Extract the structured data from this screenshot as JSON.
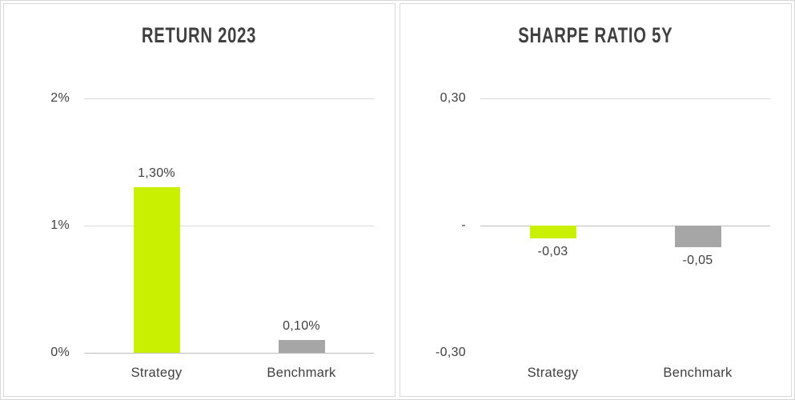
{
  "colors": {
    "strategy_bar": "#c8f000",
    "benchmark_bar": "#a6a6a6",
    "gridline": "#d9d9d9",
    "baseline": "#bdbdbd",
    "text": "#404040",
    "panel_border": "#d9d9d9",
    "background": "#ffffff"
  },
  "chart_data": [
    {
      "type": "bar",
      "title": "RETURN 2023",
      "categories": [
        "Strategy",
        "Benchmark"
      ],
      "values": [
        1.3,
        0.1
      ],
      "value_labels": [
        "1,30%",
        "0,10%"
      ],
      "bar_colors": [
        "#c8f000",
        "#a6a6a6"
      ],
      "xlabel": "",
      "ylabel": "",
      "ylim": [
        0,
        2
      ],
      "baseline": 0,
      "legend": "none",
      "grid": "horizontal",
      "yticks": [
        {
          "value": 2,
          "label": "2%",
          "grid": true
        },
        {
          "value": 1,
          "label": "1%",
          "grid": true
        },
        {
          "value": 0,
          "label": "0%",
          "grid": true
        }
      ]
    },
    {
      "type": "bar",
      "title": "SHARPE RATIO 5Y",
      "categories": [
        "Strategy",
        "Benchmark"
      ],
      "values": [
        -0.03,
        -0.05
      ],
      "value_labels": [
        "-0,03",
        "-0,05"
      ],
      "bar_colors": [
        "#c8f000",
        "#a6a6a6"
      ],
      "xlabel": "",
      "ylabel": "",
      "ylim": [
        -0.3,
        0.3
      ],
      "baseline": 0,
      "legend": "none",
      "grid": "horizontal",
      "yticks": [
        {
          "value": 0.3,
          "label": "0,30",
          "grid": true
        },
        {
          "value": 0,
          "label": "-",
          "grid": true
        },
        {
          "value": -0.3,
          "label": "-0,30",
          "grid": false
        }
      ]
    }
  ]
}
